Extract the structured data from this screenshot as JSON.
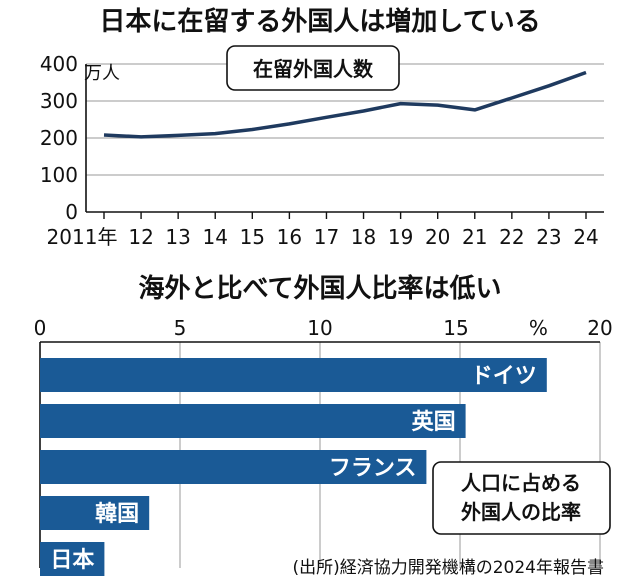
{
  "chart_data": [
    {
      "type": "line",
      "title": "日本に在留する外国人は増加している",
      "unit_label": "万人",
      "series_label": "在留外国人数",
      "x_tick_labels": [
        "2011年",
        "12",
        "13",
        "14",
        "15",
        "16",
        "17",
        "18",
        "19",
        "20",
        "21",
        "22",
        "23",
        "24"
      ],
      "x": [
        2011,
        2012,
        2013,
        2014,
        2015,
        2016,
        2017,
        2018,
        2019,
        2020,
        2021,
        2022,
        2023,
        2024
      ],
      "y_ticks": [
        0,
        100,
        200,
        300,
        400
      ],
      "ylim": [
        0,
        400
      ],
      "series": [
        {
          "values": [
            208,
            203,
            207,
            212,
            223,
            238,
            256,
            273,
            293,
            289,
            276,
            308,
            341,
            377
          ],
          "color": "#1f3a5f"
        }
      ],
      "grid": true
    },
    {
      "type": "bar",
      "orientation": "horizontal",
      "title": "海外と比べて外国人比率は低い",
      "x_tick_labels": [
        "0",
        "5",
        "10",
        "15",
        "%",
        "20"
      ],
      "x_ticks": [
        0,
        5,
        10,
        15,
        20
      ],
      "xlim": [
        0,
        20
      ],
      "categories": [
        "ドイツ",
        "英国",
        "フランス",
        "韓国",
        "日本"
      ],
      "values": [
        18.1,
        15.2,
        13.8,
        3.9,
        2.3
      ],
      "color": "#1a5a96",
      "legend_note": [
        "人口に占める",
        "外国人の比率"
      ],
      "grid": true
    }
  ],
  "source_note": "(出所)経済協力開発機構の2024年報告書"
}
